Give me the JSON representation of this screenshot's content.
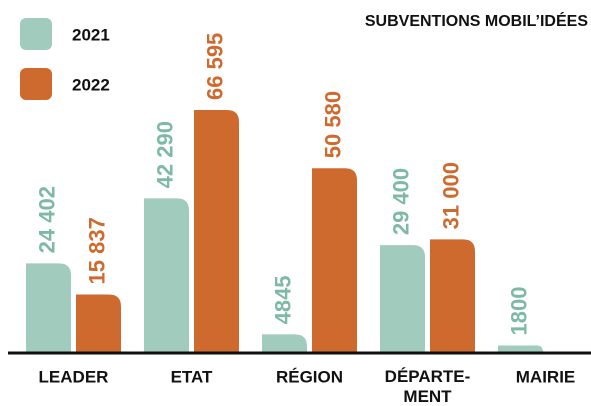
{
  "chart_data": {
    "type": "bar",
    "title": "SUBVENTIONS MOBIL’IDÉES",
    "categories": [
      "LEADER",
      "ETAT",
      "RÉGION",
      "DÉPARTE-\nMENT",
      "MAIRIE"
    ],
    "series": [
      {
        "name": "2021",
        "color": "#a0cbbd",
        "values": [
          24402,
          42290,
          4845,
          29400,
          1800
        ],
        "value_labels": [
          "24 402",
          "42 290",
          "4845",
          "29 400",
          "1800"
        ]
      },
      {
        "name": "2022",
        "color": "#cf6a2e",
        "values": [
          15837,
          66595,
          50580,
          31000,
          null
        ],
        "value_labels": [
          "15 837",
          "66 595",
          "50 580",
          "31 000",
          null
        ]
      }
    ]
  }
}
